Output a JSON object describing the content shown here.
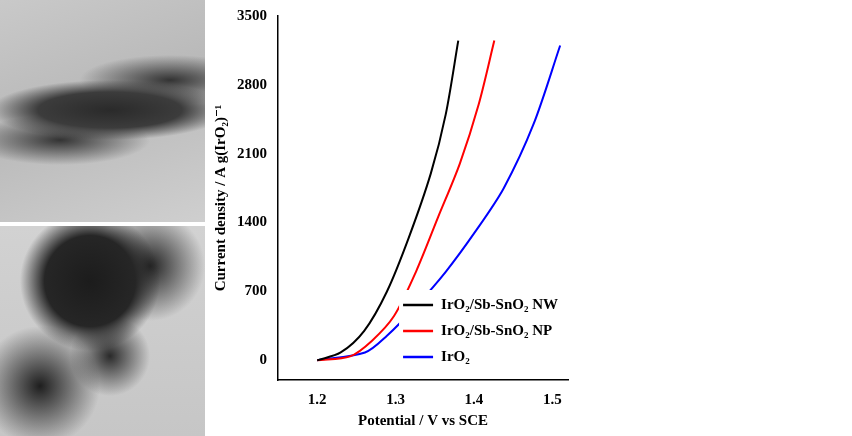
{
  "chart_data": {
    "type": "line",
    "x_label": "Potential / V vs SCE",
    "y_label": "Current density / A g(IrO₂)⁻¹",
    "xlim": [
      1.15,
      1.52
    ],
    "xticks": [
      1.2,
      1.3,
      1.4,
      1.5
    ],
    "ylim": [
      -200,
      3500
    ],
    "yticks": [
      0,
      700,
      1400,
      2100,
      2800,
      3500
    ],
    "grid": false,
    "legend": "bottom right",
    "series": [
      {
        "name": "IrO₂/Sb-SnO₂ NW",
        "color": "#000000",
        "x": [
          1.2,
          1.23,
          1.26,
          1.289,
          1.317,
          1.345,
          1.364,
          1.38
        ],
        "values": [
          0,
          80,
          300,
          700,
          1250,
          1900,
          2500,
          3250
        ]
      },
      {
        "name": "IrO₂/Sb-SnO₂ NP",
        "color": "#ff0000",
        "x": [
          1.2,
          1.242,
          1.27,
          1.298,
          1.326,
          1.354,
          1.382,
          1.406,
          1.426
        ],
        "values": [
          0,
          40,
          200,
          450,
          900,
          1450,
          2000,
          2600,
          3250
        ]
      },
      {
        "name": "IrO₂",
        "color": "#0000ff",
        "x": [
          1.2,
          1.261,
          1.289,
          1.326,
          1.364,
          1.401,
          1.438,
          1.476,
          1.51
        ],
        "values": [
          0,
          80,
          250,
          550,
          900,
          1300,
          1750,
          2400,
          3200
        ]
      }
    ]
  }
}
